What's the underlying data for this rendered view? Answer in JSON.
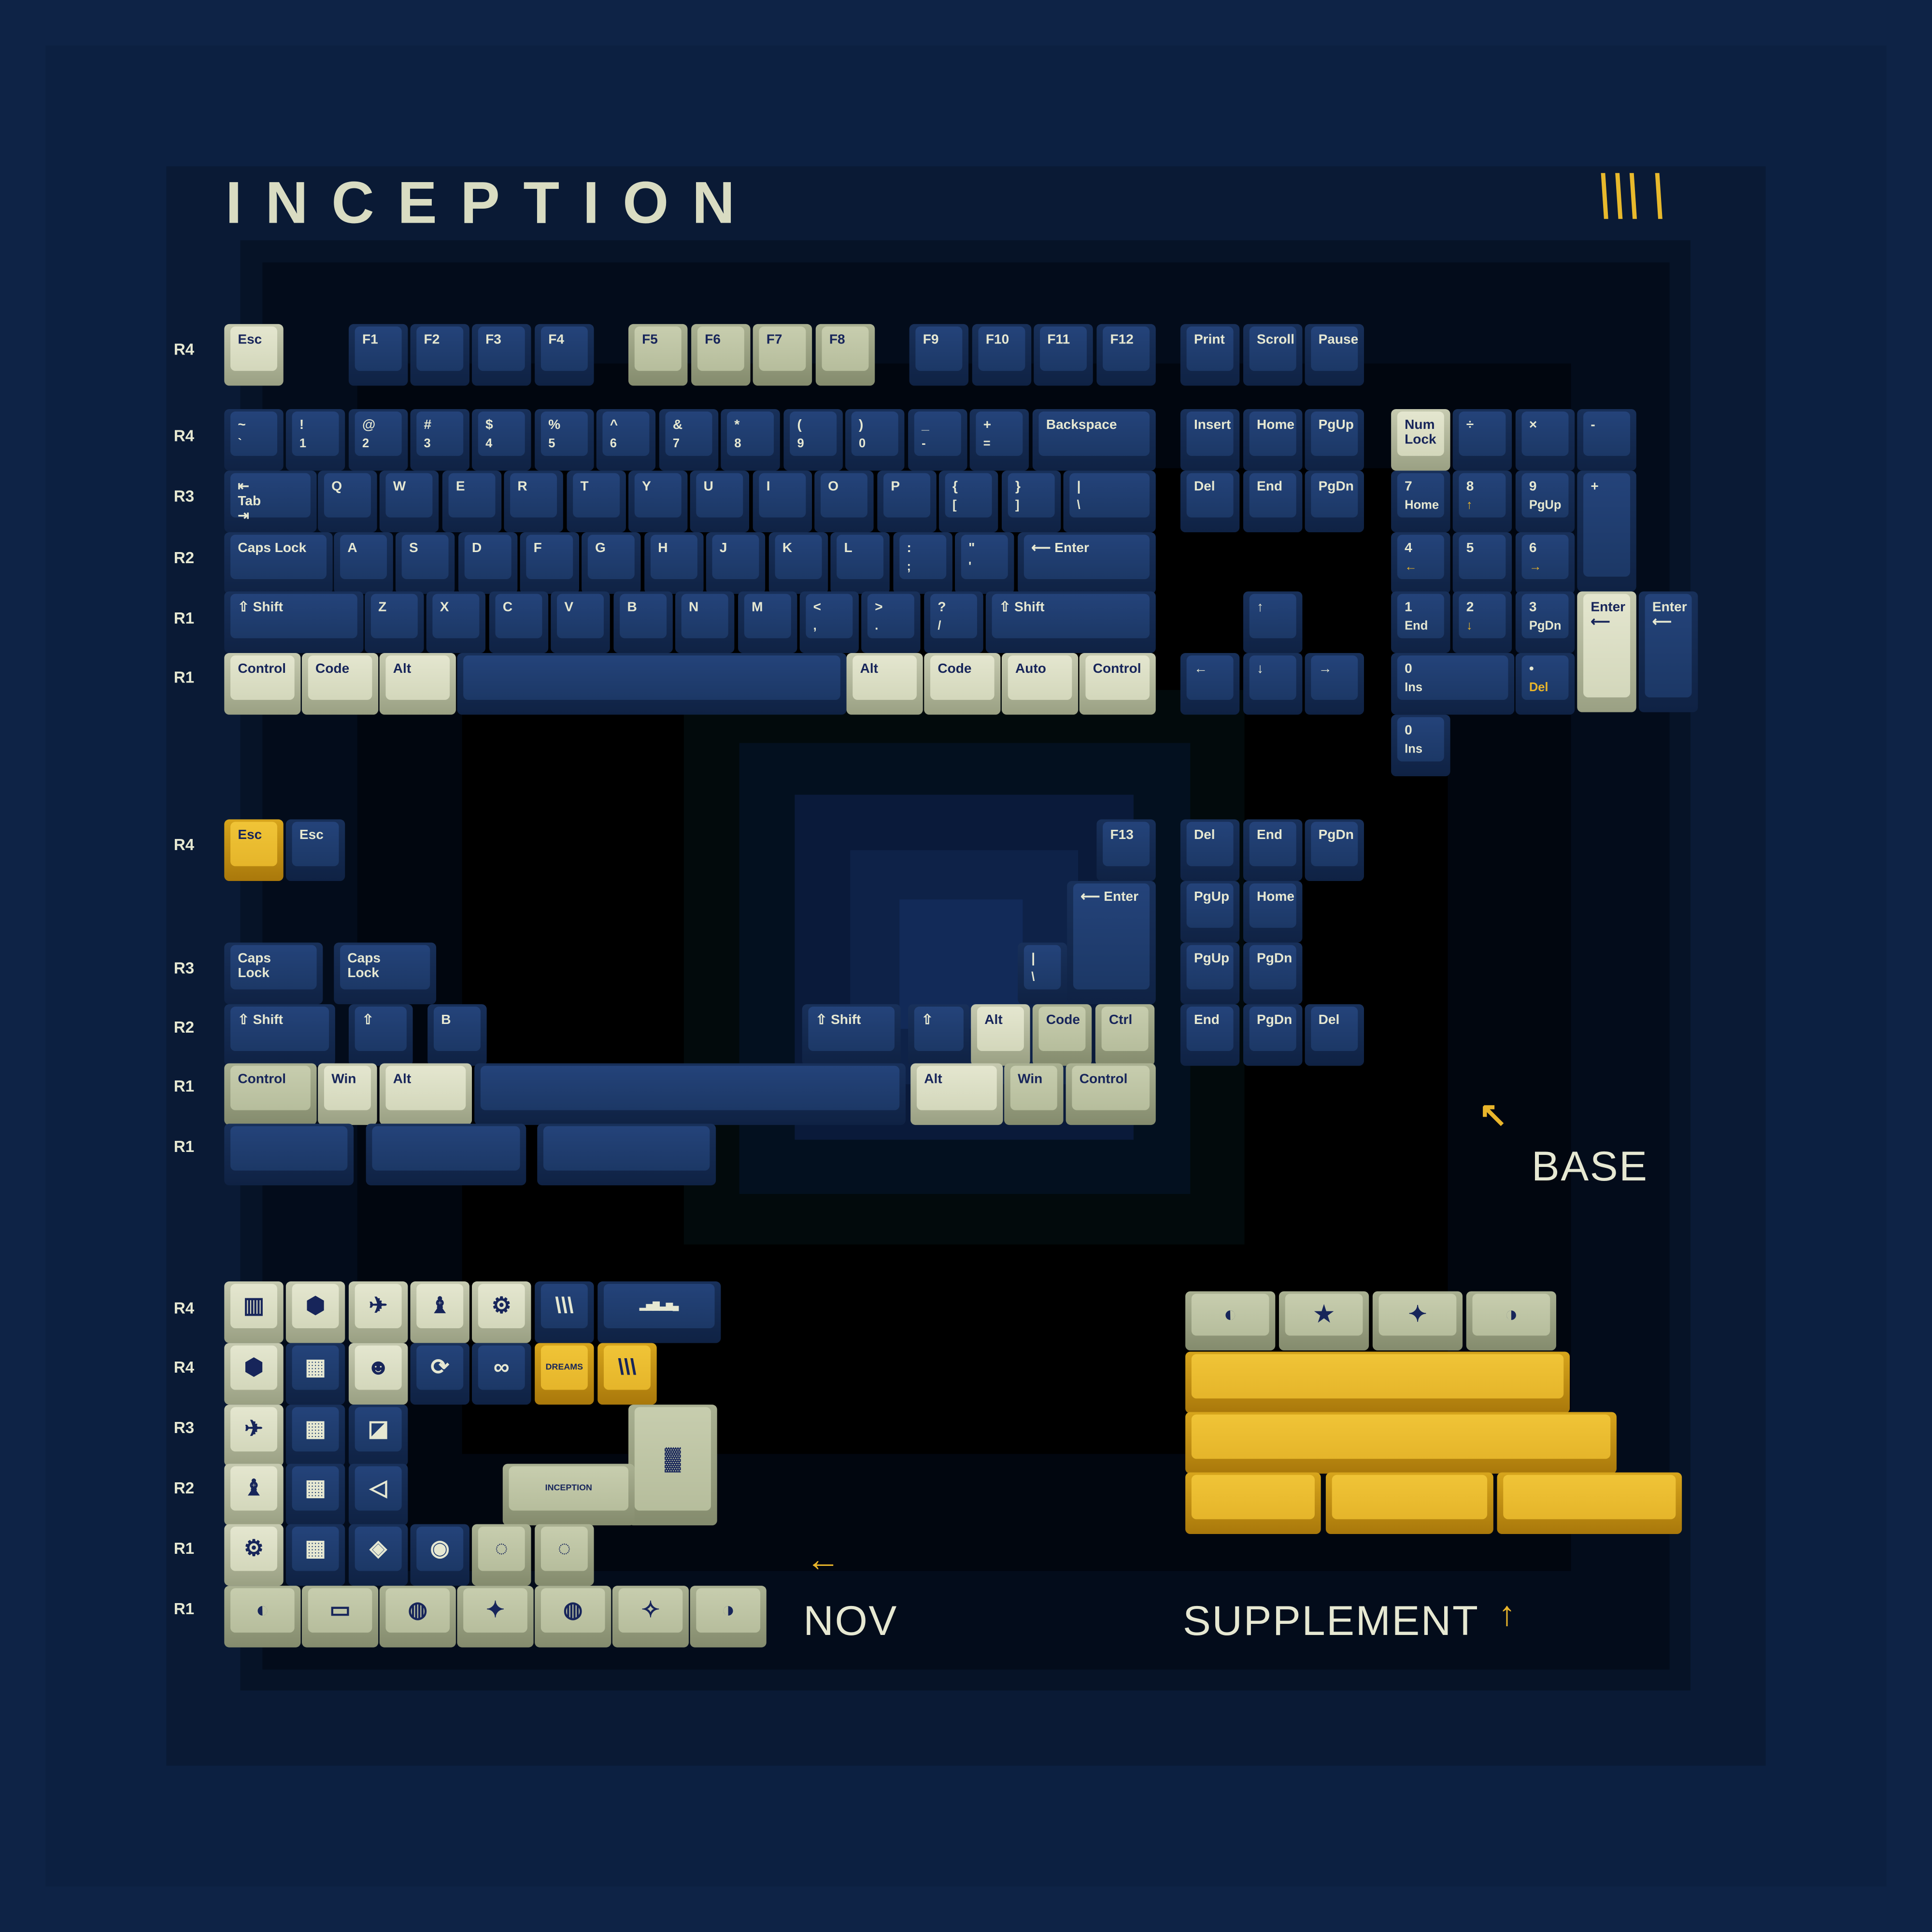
{
  "title": "INCEPTION",
  "logo_mark": "\\\\\\ \\",
  "colors": {
    "navy": "#1f3c6b",
    "cream": "#d9dcc2",
    "sage": "#bfc6a5",
    "yellow": "#e8b92c",
    "background": "#0e2346"
  },
  "captions": {
    "base": "BASE",
    "nov": "NOV",
    "supplement": "SUPPLEMENT",
    "base_arrow": "↖",
    "nov_arrow": "←",
    "supplement_arrow": "↑"
  },
  "row_labels": {
    "base": [
      "R4",
      "R4",
      "R3",
      "R2",
      "R1",
      "R1"
    ],
    "mods": [
      "R4",
      "R3",
      "R2",
      "R1",
      "R1"
    ],
    "nov": [
      "R4",
      "R4",
      "R3",
      "R2",
      "R1",
      "R1"
    ]
  },
  "base": {
    "fn": [
      {
        "t": "Esc"
      },
      {
        "t": "F1"
      },
      {
        "t": "F2"
      },
      {
        "t": "F3"
      },
      {
        "t": "F4"
      },
      {
        "t": "F5"
      },
      {
        "t": "F6"
      },
      {
        "t": "F7"
      },
      {
        "t": "F8"
      },
      {
        "t": "F9"
      },
      {
        "t": "F10"
      },
      {
        "t": "F11"
      },
      {
        "t": "F12"
      },
      {
        "t": "Print"
      },
      {
        "t": "Scroll"
      },
      {
        "t": "Pause"
      }
    ],
    "num": [
      {
        "t": "~",
        "b": "`"
      },
      {
        "t": "!",
        "b": "1"
      },
      {
        "t": "@",
        "b": "2"
      },
      {
        "t": "#",
        "b": "3"
      },
      {
        "t": "$",
        "b": "4"
      },
      {
        "t": "%",
        "b": "5"
      },
      {
        "t": "^",
        "b": "6"
      },
      {
        "t": "&",
        "b": "7"
      },
      {
        "t": "*",
        "b": "8"
      },
      {
        "t": "(",
        "b": "9"
      },
      {
        "t": ")",
        "b": "0"
      },
      {
        "t": "_",
        "b": "-"
      },
      {
        "t": "+",
        "b": "="
      },
      {
        "t": "Backspace"
      },
      {
        "t": "Insert"
      },
      {
        "t": "Home"
      },
      {
        "t": "PgUp"
      },
      {
        "t": "Num\nLock"
      },
      {
        "t": "÷"
      },
      {
        "t": "×"
      },
      {
        "t": "-"
      }
    ],
    "tab": [
      {
        "t": "⇤\nTab\n⇥"
      },
      {
        "t": "Q"
      },
      {
        "t": "W"
      },
      {
        "t": "E"
      },
      {
        "t": "R"
      },
      {
        "t": "T"
      },
      {
        "t": "Y"
      },
      {
        "t": "U"
      },
      {
        "t": "I"
      },
      {
        "t": "O"
      },
      {
        "t": "P"
      },
      {
        "t": "{",
        "b": "["
      },
      {
        "t": "}",
        "b": "]"
      },
      {
        "t": "|",
        "b": "\\"
      },
      {
        "t": "Del"
      },
      {
        "t": "End"
      },
      {
        "t": "PgDn"
      },
      {
        "t": "7",
        "b": "Home"
      },
      {
        "t": "8",
        "b": "↑",
        "accent": true
      },
      {
        "t": "9",
        "b": "PgUp"
      },
      {
        "t": "+"
      }
    ],
    "caps": [
      {
        "t": "Caps Lock"
      },
      {
        "t": "A"
      },
      {
        "t": "S"
      },
      {
        "t": "D"
      },
      {
        "t": "F"
      },
      {
        "t": "G"
      },
      {
        "t": "H"
      },
      {
        "t": "J"
      },
      {
        "t": "K"
      },
      {
        "t": "L"
      },
      {
        "t": ":",
        "b": ";"
      },
      {
        "t": "\"",
        "b": "'"
      },
      {
        "t": "⟵ Enter"
      },
      {
        "t": "4",
        "b": "←",
        "accent": true
      },
      {
        "t": "5"
      },
      {
        "t": "6",
        "b": "→",
        "accent": true
      }
    ],
    "shift": [
      {
        "t": "⇧ Shift"
      },
      {
        "t": "Z"
      },
      {
        "t": "X"
      },
      {
        "t": "C"
      },
      {
        "t": "V"
      },
      {
        "t": "B"
      },
      {
        "t": "N"
      },
      {
        "t": "M"
      },
      {
        "t": "<",
        "b": ","
      },
      {
        "t": ">",
        "b": "."
      },
      {
        "t": "?",
        "b": "/"
      },
      {
        "t": "⇧ Shift"
      },
      {
        "t": "↑"
      },
      {
        "t": "1",
        "b": "End"
      },
      {
        "t": "2",
        "b": "↓",
        "accent": true
      },
      {
        "t": "3",
        "b": "PgDn"
      },
      {
        "t": "Enter\n⟵"
      },
      {
        "t": "Enter\n⟵"
      }
    ],
    "bottom": [
      {
        "t": "Control"
      },
      {
        "t": "Code"
      },
      {
        "t": "Alt"
      },
      {
        "t": ""
      },
      {
        "t": "Alt"
      },
      {
        "t": "Code"
      },
      {
        "t": "Auto"
      },
      {
        "t": "Control"
      },
      {
        "t": "←"
      },
      {
        "t": "↓"
      },
      {
        "t": "→"
      },
      {
        "t": "0",
        "b": "Ins"
      },
      {
        "t": "•",
        "b": "Del",
        "accent": true
      }
    ],
    "extra": [
      {
        "t": "0",
        "b": "Ins"
      }
    ]
  },
  "mods": {
    "r1": [
      {
        "t": "Esc"
      },
      {
        "t": "Esc"
      },
      {
        "t": "F13"
      },
      {
        "t": "Del"
      },
      {
        "t": "End"
      },
      {
        "t": "PgDn"
      }
    ],
    "r2": [
      {
        "t": "⟵ Enter"
      },
      {
        "t": "PgUp"
      },
      {
        "t": "Home"
      }
    ],
    "r3": [
      {
        "t": "Caps\nLock"
      },
      {
        "t": "Caps\nLock"
      },
      {
        "t": "|",
        "b": "\\"
      },
      {
        "t": "PgUp"
      },
      {
        "t": "PgDn"
      }
    ],
    "r4": [
      {
        "t": "⇧ Shift"
      },
      {
        "t": "⇧"
      },
      {
        "t": "B"
      },
      {
        "t": "⇧ Shift"
      },
      {
        "t": "⇧"
      },
      {
        "t": "Alt"
      },
      {
        "t": "Code"
      },
      {
        "t": "Ctrl"
      },
      {
        "t": "End"
      },
      {
        "t": "PgDn"
      },
      {
        "t": "Del"
      }
    ],
    "r5": [
      {
        "t": "Control"
      },
      {
        "t": "Win"
      },
      {
        "t": "Alt"
      },
      {
        "t": ""
      },
      {
        "t": "Alt"
      },
      {
        "t": "Win"
      },
      {
        "t": "Control"
      }
    ],
    "r6": [
      {
        "t": ""
      },
      {
        "t": ""
      },
      {
        "t": ""
      }
    ]
  },
  "nov": {
    "r1": [
      {
        "i": "▥",
        "icon": "reality-icon"
      },
      {
        "i": "⬢",
        "icon": "dice-icon"
      },
      {
        "i": "✈",
        "icon": "plane-icon"
      },
      {
        "i": "♝",
        "icon": "chess-bishop-icon"
      },
      {
        "i": "⚙",
        "icon": "roulette-icon"
      },
      {
        "i": "\\\\\\",
        "icon": "logo-icon"
      },
      {
        "i": "▂▅▇▃▆▄",
        "icon": "cityscape-icon"
      }
    ],
    "r2": [
      {
        "i": "⬢",
        "icon": "dice-icon"
      },
      {
        "i": "▦",
        "icon": "maze-icon"
      },
      {
        "i": "☻",
        "icon": "head-icon"
      },
      {
        "i": "⟳",
        "icon": "rotating-hallway-icon"
      },
      {
        "i": "∞",
        "icon": "infinity-icon"
      },
      {
        "i": "DREAMS",
        "icon": "dreams-icon"
      },
      {
        "i": "\\\\\\",
        "icon": "logo-icon"
      }
    ],
    "r3": [
      {
        "i": "✈",
        "icon": "plane-icon"
      },
      {
        "i": "▦",
        "icon": "maze-icon"
      },
      {
        "i": "◪",
        "icon": "square-icon"
      },
      {
        "i": "▓",
        "icon": "city-fold-icon"
      }
    ],
    "r4": [
      {
        "i": "♝",
        "icon": "chess-bishop-icon"
      },
      {
        "i": "▦",
        "icon": "maze-icon"
      },
      {
        "i": "◁",
        "icon": "triangle-icon"
      },
      {
        "i": "INCEPTION",
        "icon": "city-icon"
      }
    ],
    "r5": [
      {
        "i": "⚙",
        "icon": "roulette-icon"
      },
      {
        "i": "▦",
        "icon": "maze-icon"
      },
      {
        "i": "◈",
        "icon": "spinning-top-icon"
      },
      {
        "i": "◉",
        "icon": "compass-icon"
      },
      {
        "i": "◌",
        "icon": "circle-icon"
      },
      {
        "i": "◌",
        "icon": "circle-icon"
      }
    ],
    "r6": [
      {
        "i": "◐",
        "icon": "hallway-icon"
      },
      {
        "i": "▭",
        "icon": "totem-icon"
      },
      {
        "i": "◍",
        "icon": "brain-icon"
      },
      {
        "i": "✦",
        "icon": "spark-icon"
      },
      {
        "i": "◍",
        "icon": "brain-icon"
      },
      {
        "i": "✧",
        "icon": "star-icon"
      },
      {
        "i": "◑",
        "icon": "hallway-icon"
      }
    ]
  },
  "supplement": {
    "r1": [
      {
        "i": "◐",
        "icon": "hallway-icon"
      },
      {
        "i": "★",
        "icon": "star-icon"
      },
      {
        "i": "✦",
        "icon": "spark-icon"
      },
      {
        "i": "◑",
        "icon": "hallway-icon"
      }
    ],
    "r2": [
      {
        "t": ""
      }
    ],
    "r3": [
      {
        "t": ""
      }
    ],
    "r4": [
      {
        "t": ""
      },
      {
        "t": ""
      },
      {
        "t": ""
      }
    ]
  }
}
